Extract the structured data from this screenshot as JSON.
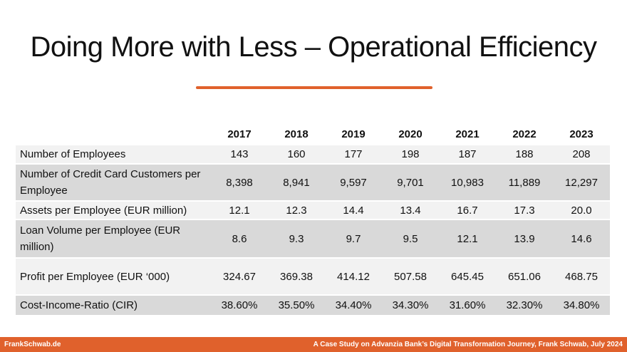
{
  "header": {
    "title": "Doing More with Less – Operational Efficiency"
  },
  "table": {
    "columns": [
      "2017",
      "2018",
      "2019",
      "2020",
      "2021",
      "2022",
      "2023"
    ],
    "rows": [
      [
        "Number of Employees",
        "143",
        "160",
        "177",
        "198",
        "187",
        "188",
        "208"
      ],
      [
        "Number of Credit Card Customers per Employee",
        "8,398",
        "8,941",
        "9,597",
        "9,701",
        "10,983",
        "11,889",
        "12,297"
      ],
      [
        "Assets per Employee (EUR million)",
        "12.1",
        "12.3",
        "14.4",
        "13.4",
        "16.7",
        "17.3",
        "20.0"
      ],
      [
        "Loan Volume per Employee (EUR million)",
        "8.6",
        "9.3",
        "9.7",
        "9.5",
        "12.1",
        "13.9",
        "14.6"
      ],
      [
        "Profit per Employee (EUR ‘000)",
        "324.67",
        "369.38",
        "414.12",
        "507.58",
        "645.45",
        "651.06",
        "468.75"
      ],
      [
        "Cost-Income-Ratio (CIR)",
        "38.60%",
        "35.50%",
        "34.40%",
        "34.30%",
        "31.60%",
        "32.30%",
        "34.80%"
      ]
    ]
  },
  "footer": {
    "left": "FrankSchwab.de",
    "right": "A Case Study on Advanzia Bank’s Digital Transformation Journey, Frank Schwab, July 2024"
  }
}
